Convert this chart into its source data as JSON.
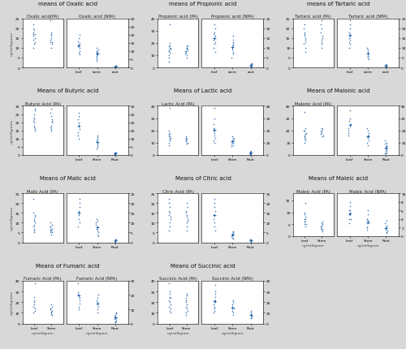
{
  "figure_bg": "#d8d8d8",
  "panel_bg": "#ffffff",
  "dot_color": "#1a5fa8",
  "title_fontsize": 5.0,
  "sub_fontsize": 3.8,
  "tick_fontsize": 3.2,
  "label_fontsize": 3.2,
  "panels": [
    {
      "title": "means of Oxalic acid",
      "left_label": "Oxalic acid(PA)",
      "right_label": "Oxalic acid (NPA)",
      "show_left_ylabel": true,
      "show_bottom_xlabel": false,
      "left_ylim": [
        0,
        25
      ],
      "right_ylim": [
        0,
        30
      ],
      "right_categories": [
        "leaf",
        "stem",
        "root"
      ],
      "left_data": {
        "col1": [
          22,
          20,
          19,
          18,
          17,
          17,
          16,
          15,
          14,
          13,
          12,
          10
        ],
        "col2": [
          24,
          18,
          17,
          16,
          15,
          14,
          13,
          13,
          12,
          10
        ]
      },
      "right_data": {
        "leaf": [
          20,
          18,
          16,
          15,
          14,
          13,
          12,
          10,
          9,
          8
        ],
        "stem": [
          12,
          11,
          10,
          10,
          9,
          9,
          8,
          7,
          6,
          5,
          4
        ],
        "root": [
          1.0,
          0.8,
          0.6,
          0.5,
          0.4
        ]
      }
    },
    {
      "title": "means of Propionic acid",
      "left_label": "Propionic acid (PA)",
      "right_label": "Propionic acid (NPA)",
      "show_left_ylabel": false,
      "show_bottom_xlabel": false,
      "left_ylim": [
        0,
        40
      ],
      "right_ylim": [
        0,
        25
      ],
      "right_categories": [
        "leaf",
        "stem",
        "root"
      ],
      "left_data": {
        "col1": [
          35,
          20,
          18,
          17,
          16,
          15,
          15,
          14,
          13,
          12,
          10,
          8,
          5
        ],
        "col2": [
          18,
          17,
          16,
          15,
          15,
          14,
          13,
          13,
          12,
          11,
          10,
          8
        ]
      },
      "right_data": {
        "leaf": [
          22,
          20,
          18,
          17,
          16,
          15,
          14,
          13,
          12,
          10,
          8
        ],
        "stem": [
          16,
          14,
          13,
          12,
          11,
          10,
          9,
          8,
          7,
          5
        ],
        "root": [
          2.0,
          1.5,
          1.2,
          1.0,
          0.8,
          0.6,
          0.4
        ]
      }
    },
    {
      "title": "means of Tartaric acid",
      "left_label": "Tartaric acid (PA)",
      "right_label": "Tartaric acid (NPA)",
      "show_left_ylabel": false,
      "show_bottom_xlabel": false,
      "left_ylim": [
        0,
        25
      ],
      "right_ylim": [
        0,
        25
      ],
      "right_categories": [
        "leaf",
        "stem",
        "root"
      ],
      "left_data": {
        "col1": [
          22,
          20,
          18,
          17,
          16,
          15,
          14,
          13,
          12,
          10,
          8
        ],
        "col2": [
          24,
          22,
          20,
          18,
          16,
          15,
          14,
          13,
          12,
          10
        ]
      },
      "right_data": {
        "leaf": [
          24,
          22,
          20,
          18,
          16,
          15,
          14,
          13,
          12,
          10
        ],
        "stem": [
          10,
          9,
          8,
          8,
          7,
          6,
          5,
          4
        ],
        "root": [
          1.5,
          1.2,
          1.0,
          0.8,
          0.6
        ]
      }
    },
    {
      "title": "Means of Butyric acid",
      "left_label": "Butyric Acid (PA)",
      "right_label": "",
      "show_left_ylabel": true,
      "show_bottom_xlabel": false,
      "left_ylim": [
        0,
        30
      ],
      "right_ylim": [
        0,
        30
      ],
      "right_categories": [
        "Leaf",
        "Stem",
        "Root"
      ],
      "left_data": {
        "col1": [
          28,
          27,
          25,
          23,
          22,
          21,
          20,
          18,
          17,
          16,
          15
        ],
        "col2": [
          28,
          26,
          24,
          22,
          21,
          20,
          18,
          17,
          16,
          15
        ]
      },
      "right_data": {
        "Leaf": [
          26,
          24,
          22,
          20,
          18,
          16,
          14,
          12,
          10
        ],
        "Stem": [
          12,
          11,
          10,
          9,
          8,
          7,
          6,
          5,
          4
        ],
        "Root": [
          1.5,
          1.2,
          1.0,
          0.8,
          0.6,
          0.4
        ]
      }
    },
    {
      "title": "Means of Lactic acid",
      "left_label": "Lactic Acid (PA)",
      "right_label": "",
      "show_left_ylabel": false,
      "show_bottom_xlabel": false,
      "left_ylim": [
        0,
        40
      ],
      "right_ylim": [
        0,
        40
      ],
      "right_categories": [
        "Leaf",
        "Stem",
        "Root"
      ],
      "left_data": {
        "col1": [
          38,
          20,
          18,
          17,
          16,
          15,
          14,
          13,
          12,
          10,
          8
        ],
        "col2": [
          15,
          14,
          13,
          13,
          12,
          11,
          10,
          9
        ]
      },
      "right_data": {
        "Leaf": [
          38,
          30,
          25,
          22,
          20,
          18,
          16,
          14,
          12,
          10
        ],
        "Stem": [
          15,
          14,
          13,
          12,
          11,
          10,
          9,
          8,
          7
        ],
        "Root": [
          3,
          2.5,
          2.0,
          1.5,
          1.2,
          1.0,
          0.8,
          0.6
        ]
      }
    },
    {
      "title": "Means of Malonic acid",
      "left_label": "Malonic Acid (PA)",
      "right_label": "",
      "show_left_ylabel": false,
      "show_bottom_xlabel": false,
      "left_ylim": [
        0,
        40
      ],
      "right_ylim": [
        0,
        40
      ],
      "right_categories": [
        "Leaf",
        "Stem",
        "Root"
      ],
      "left_data": {
        "col1": [
          35,
          22,
          20,
          20,
          18,
          17,
          16,
          15,
          14,
          13,
          12,
          10
        ],
        "col2": [
          22,
          21,
          20,
          19,
          18,
          17,
          16,
          15
        ]
      },
      "right_data": {
        "Leaf": [
          36,
          30,
          28,
          25,
          22,
          20,
          18,
          16
        ],
        "Stem": [
          22,
          20,
          18,
          16,
          15,
          14,
          12,
          10,
          8
        ],
        "Root": [
          12,
          10,
          9,
          8,
          7,
          6,
          5,
          4,
          3,
          2,
          1.5,
          1.0
        ]
      }
    },
    {
      "title": "Means of Malic acid",
      "left_label": "Malic Acid (PA)",
      "right_label": "",
      "show_left_ylabel": true,
      "show_bottom_xlabel": false,
      "left_ylim": [
        0,
        25
      ],
      "right_ylim": [
        0,
        25
      ],
      "right_categories": [
        "Leaf",
        "Stem",
        "Root"
      ],
      "left_data": {
        "col1": [
          22,
          15,
          14,
          13,
          12,
          11,
          10,
          9,
          8,
          7,
          6,
          5
        ],
        "col2": [
          10,
          9,
          8,
          8,
          7,
          7,
          6,
          6,
          5,
          5,
          4
        ]
      },
      "right_data": {
        "Leaf": [
          22,
          20,
          18,
          16,
          15,
          14,
          12,
          10,
          8
        ],
        "Stem": [
          12,
          11,
          10,
          9,
          8,
          7,
          6,
          5,
          4,
          3
        ],
        "Root": [
          1.5,
          1.2,
          1.0,
          0.8,
          0.6,
          0.4
        ]
      }
    },
    {
      "title": "Means of Citric acid",
      "left_label": "Citric Acid (PA)",
      "right_label": "",
      "show_left_ylabel": false,
      "show_bottom_xlabel": false,
      "left_ylim": [
        0,
        25
      ],
      "right_ylim": [
        0,
        25
      ],
      "right_categories": [
        "Leaf",
        "Stem",
        "Root"
      ],
      "left_data": {
        "col1": [
          22,
          20,
          18,
          16,
          15,
          14,
          13,
          12,
          10,
          8,
          6
        ],
        "col2": [
          20,
          18,
          16,
          15,
          14,
          13,
          12,
          11,
          10,
          8,
          6
        ]
      },
      "right_data": {
        "Leaf": [
          22,
          20,
          18,
          16,
          14,
          12,
          10,
          8,
          6
        ],
        "Stem": [
          5.5,
          5.0,
          4.5,
          4.0,
          3.5,
          3.0,
          2.5,
          2.0
        ],
        "Root": [
          1.5,
          1.2,
          1.0,
          0.8,
          0.6,
          0.4
        ]
      }
    },
    {
      "title": "Means of Maleic acid",
      "left_label": "Maleic Acid (PA)",
      "right_label": "Maleic Acid (NPA)",
      "show_left_ylabel": false,
      "show_bottom_xlabel": true,
      "bottom_xlabel": "ng/milligram",
      "left_ylim": [
        0,
        18
      ],
      "right_ylim": [
        0,
        10
      ],
      "right_categories": [
        "Leaf",
        "Stem",
        "Root"
      ],
      "left_data": {
        "col1": [
          14,
          10,
          9,
          8,
          7,
          7,
          6,
          6,
          5,
          5,
          4
        ],
        "col2": [
          6,
          5.5,
          5.0,
          4.5,
          4.0,
          3.5,
          3.0,
          2.5,
          2.0
        ]
      },
      "right_data": {
        "Leaf": [
          8,
          7,
          6,
          6,
          5,
          5,
          4,
          4,
          3
        ],
        "Stem": [
          6,
          5,
          4,
          4,
          3,
          3,
          2,
          2,
          1.5
        ],
        "Root": [
          3.5,
          3.0,
          2.5,
          2.0,
          1.5,
          1.2,
          1.0,
          0.8
        ]
      }
    },
    {
      "title": "Means of Fumaric acid",
      "left_label": "Fumaric Acid (PA)",
      "right_label": "Fumaric Acid (NPA)",
      "show_left_ylabel": true,
      "show_bottom_xlabel": true,
      "bottom_xlabel": "ng/milligram",
      "left_ylim": [
        0,
        40
      ],
      "right_ylim": [
        0,
        30
      ],
      "right_categories": [
        "Leaf",
        "Stem",
        "Root"
      ],
      "left_data": {
        "col1": [
          38,
          25,
          22,
          20,
          18,
          16,
          14,
          12,
          10
        ],
        "col2": [
          18,
          16,
          14,
          13,
          12,
          11,
          10,
          9,
          8
        ]
      },
      "right_data": {
        "Leaf": [
          36,
          28,
          22,
          20,
          18,
          16,
          14,
          12,
          10
        ],
        "Stem": [
          20,
          18,
          16,
          15,
          14,
          12,
          10,
          8
        ],
        "Root": [
          8,
          7,
          6,
          5,
          4,
          3,
          2,
          1.5,
          1.0
        ]
      }
    },
    {
      "title": "Means of Succinic acid",
      "left_label": "Succinic Acid (PA)",
      "right_label": "Succinic Acid (NPA)",
      "show_left_ylabel": false,
      "show_bottom_xlabel": true,
      "bottom_xlabel": "ng/milligram",
      "left_ylim": [
        0,
        40
      ],
      "right_ylim": [
        0,
        40
      ],
      "right_categories": [
        "Leaf",
        "Stem",
        "Root"
      ],
      "left_data": {
        "col1": [
          38,
          30,
          28,
          25,
          24,
          22,
          20,
          18,
          16,
          14,
          12,
          10
        ],
        "col2": [
          28,
          26,
          24,
          22,
          20,
          18,
          16,
          14,
          12,
          10,
          8
        ]
      },
      "right_data": {
        "Leaf": [
          36,
          30,
          28,
          25,
          22,
          20,
          18,
          16,
          14,
          12,
          10
        ],
        "Stem": [
          22,
          20,
          18,
          16,
          14,
          12,
          10,
          8
        ],
        "Root": [
          12,
          10,
          9,
          8,
          7,
          6,
          5
        ]
      }
    }
  ]
}
